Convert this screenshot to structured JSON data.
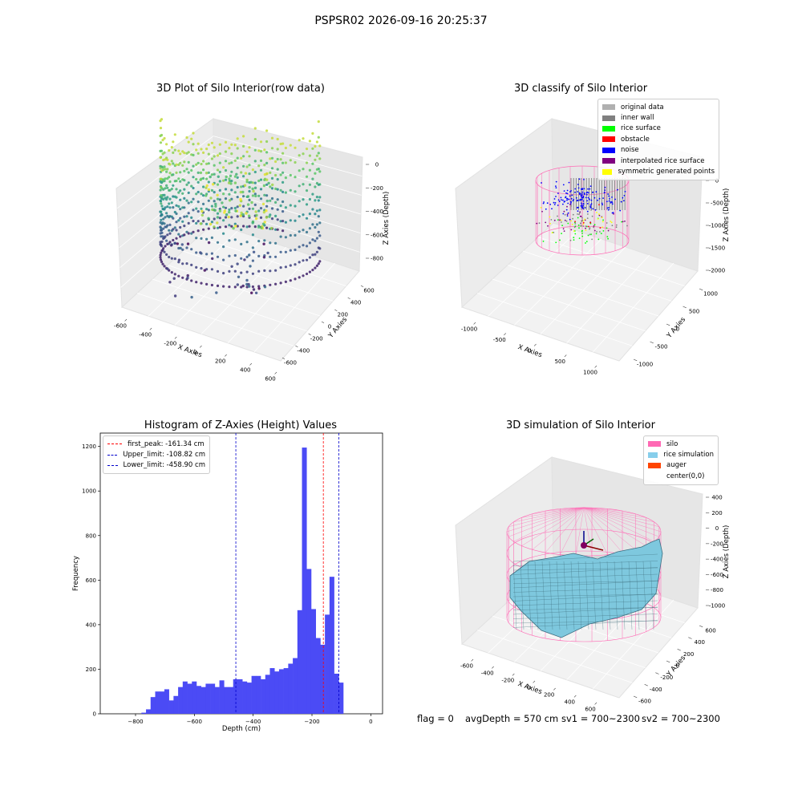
{
  "figure_title": "PSPSR02 2026-09-16 20:25:37",
  "footer": {
    "flag": "flag = 0",
    "avg_depth": "avgDepth = 570 cm",
    "sv1": "sv1 = 700~2300",
    "sv2": "sv2 = 700~2300"
  },
  "chart_data": [
    {
      "type": "scatter",
      "title": "3D Plot of Silo Interior(row data)",
      "xlabel": "X Axies",
      "ylabel": "Y Axies",
      "zlabel": "Z Axies (Depth)",
      "x_ticks": [
        "-600",
        "-400",
        "-200",
        "0",
        "200",
        "400",
        "600"
      ],
      "y_ticks": [
        "-600",
        "-400",
        "-200",
        "0",
        "200",
        "400",
        "600"
      ],
      "z_ticks": [
        "0",
        "-200",
        "-400",
        "-600",
        "-800"
      ],
      "colormap": "viridis",
      "grid": true
    },
    {
      "type": "scatter",
      "title": "3D classify of Silo Interior",
      "xlabel": "X Axies",
      "ylabel": "Y Axies",
      "zlabel": "Z Axies (Depth)",
      "x_ticks": [
        "-1000",
        "-500",
        "0",
        "500",
        "1000"
      ],
      "y_ticks": [
        "-1000",
        "-500",
        "0",
        "500",
        "1000"
      ],
      "z_ticks": [
        "0",
        "-500",
        "-1000",
        "-1500",
        "-2000"
      ],
      "legend": [
        {
          "name": "original data",
          "color": "#b0b0b0"
        },
        {
          "name": "inner wall",
          "color": "#808080"
        },
        {
          "name": "rice surface",
          "color": "#00ff00"
        },
        {
          "name": "obstacle",
          "color": "#ff0000"
        },
        {
          "name": "noise",
          "color": "#0000ff"
        },
        {
          "name": "interpolated rice surface",
          "color": "#800080"
        },
        {
          "name": "symmetric generated points",
          "color": "#ffff00"
        }
      ],
      "legend_position": "top-right",
      "grid": true
    },
    {
      "type": "bar",
      "title": "Histogram of Z-Axies (Height) Values",
      "xlabel": "Depth (cm)",
      "ylabel": "Frequency",
      "xlim": [
        -920,
        40
      ],
      "ylim": [
        0,
        1260
      ],
      "x_ticks": [
        -800,
        -600,
        -400,
        -200,
        0
      ],
      "y_ticks": [
        0,
        200,
        400,
        600,
        800,
        1000,
        1200
      ],
      "bin_start": -780,
      "bin_width": 15.6,
      "values": [
        5,
        20,
        75,
        100,
        100,
        110,
        60,
        80,
        120,
        145,
        135,
        145,
        125,
        120,
        135,
        135,
        120,
        150,
        120,
        120,
        155,
        155,
        145,
        140,
        170,
        170,
        155,
        175,
        205,
        190,
        200,
        205,
        225,
        250,
        465,
        1195,
        650,
        470,
        340,
        310,
        445,
        615,
        180,
        140
      ],
      "bar_color": "#4b4bf5",
      "lines": [
        {
          "label": "first_peak: -161.34 cm",
          "x": -161.34,
          "color": "#ff0000"
        },
        {
          "label": "Upper_limit: -108.82 cm",
          "x": -108.82,
          "color": "#0000cc"
        },
        {
          "label": "Lower_limit: -458.90 cm",
          "x": -458.9,
          "color": "#0000cc"
        }
      ],
      "legend_position": "top-left"
    },
    {
      "type": "surface",
      "title": "3D simulation of Silo Interior",
      "xlabel": "X Axies",
      "ylabel": "Y Axies",
      "zlabel": "Z Axies (Depth)",
      "x_ticks": [
        "-600",
        "-400",
        "-200",
        "0",
        "200",
        "400",
        "600"
      ],
      "y_ticks": [
        "-600",
        "-400",
        "-200",
        "0",
        "200",
        "400",
        "600"
      ],
      "z_ticks": [
        "400",
        "200",
        "0",
        "-200",
        "-400",
        "-600",
        "-800",
        "-1000"
      ],
      "legend": [
        {
          "name": "silo",
          "color": "#ff69b4"
        },
        {
          "name": "rice simulation",
          "color": "#87ceeb"
        },
        {
          "name": "auger",
          "color": "#ff4500"
        },
        {
          "name": "center(0,0)",
          "color": ""
        }
      ],
      "legend_position": "top-right",
      "grid": true
    }
  ]
}
